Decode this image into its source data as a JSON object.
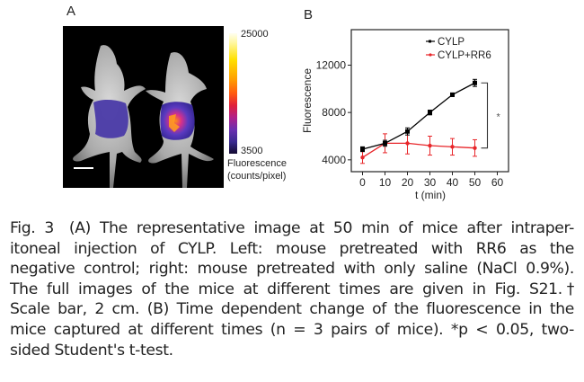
{
  "panel_a": {
    "letter": "A",
    "colorbar": {
      "max_label": "25000",
      "min_label": "3500",
      "title_line1": "Fluorescence",
      "title_line2": "(counts/pixel)",
      "colormap": "fire (black-purple-red-orange-yellow-white)"
    },
    "image_description": "Two mice, ventral view, grayscale with fluorescence overlay; left mouse weak purple signal, right mouse stronger signal with orange/red hotspots",
    "scale_bar": "2 cm"
  },
  "panel_b": {
    "letter": "B"
  },
  "chart_data": {
    "type": "line",
    "title": "",
    "xlabel": "t (min)",
    "ylabel": "Fluorescence",
    "x": [
      0,
      10,
      20,
      30,
      40,
      50
    ],
    "xlim": [
      -5,
      65
    ],
    "ylim": [
      3000,
      15000
    ],
    "xticks": [
      0,
      10,
      20,
      30,
      40,
      50,
      60
    ],
    "yticks": [
      4000,
      8000,
      12000
    ],
    "xtick_labels": [
      "0",
      "10",
      "20",
      "30",
      "40",
      "50",
      "60"
    ],
    "ytick_labels": [
      "4000",
      "8000",
      "12000"
    ],
    "grid": false,
    "legend_position": "top-right",
    "series": [
      {
        "name": "CYLP",
        "color": "#000000",
        "values": [
          4900,
          5400,
          6400,
          8000,
          9500,
          10500
        ],
        "errors": [
          200,
          250,
          300,
          200,
          150,
          300
        ]
      },
      {
        "name": "CYLP+RR6",
        "color": "#e8262a",
        "values": [
          4200,
          5400,
          5400,
          5200,
          5100,
          5000
        ],
        "errors": [
          500,
          800,
          900,
          800,
          700,
          700
        ]
      }
    ],
    "annotations": [
      {
        "type": "significance-bracket",
        "text": "*",
        "at_x": 50,
        "between": [
          "CYLP",
          "CYLP+RR6"
        ]
      }
    ]
  },
  "caption": {
    "lines": [
      [
        "Fig. 3",
        " (A) The representative image at 50 min of mice after intraper-"
      ],
      [
        "",
        "itoneal injection of CYLP. Left: mouse pretreated with RR6 as the"
      ],
      [
        "",
        "negative control; right: mouse pretreated with only saline (NaCl 0.9%)."
      ],
      [
        "",
        "The full images of the mice at different times are given in Fig. S21.†"
      ],
      [
        "",
        "Scale bar, 2 cm. (B) Time dependent change of the fluorescence in the"
      ],
      [
        "",
        "mice captured at different times (n = 3 pairs of mice). *p < 0.05, two-"
      ],
      [
        "",
        "sided Student's t-test."
      ]
    ]
  }
}
